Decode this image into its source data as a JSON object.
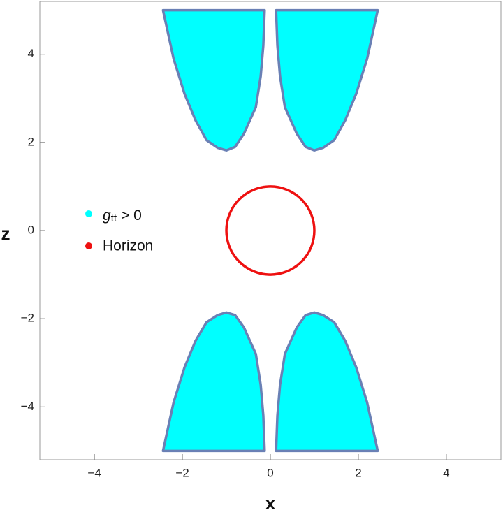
{
  "chart_data": {
    "type": "region",
    "xlabel": "x",
    "ylabel": "z",
    "xlim": [
      -5.24,
      5.24
    ],
    "ylim": [
      -5.2,
      5.2
    ],
    "xticks": [
      {
        "value": -4,
        "label": "−4"
      },
      {
        "value": -2,
        "label": "−2"
      },
      0,
      2,
      4
    ],
    "yticks": [
      {
        "value": -4,
        "label": "−4"
      },
      {
        "value": -2,
        "label": "−2"
      },
      0,
      2,
      4
    ],
    "series": [
      {
        "name": {
          "base": "g",
          "sub": "tt",
          "rest": "> 0"
        },
        "color": "#00ffff",
        "edge_color": "#6a80b5",
        "regions": [
          {
            "x": [
              0.13,
              0.16,
              0.22,
              0.33,
              0.6,
              0.8,
              1.0,
              1.2,
              1.45,
              1.7,
              1.95,
              2.2,
              2.44
            ],
            "z": [
              5,
              4.2,
              3.5,
              2.8,
              2.2,
              1.9,
              1.82,
              1.88,
              2.05,
              2.5,
              3.1,
              3.9,
              5
            ]
          },
          {
            "x": [
              -0.13,
              -0.16,
              -0.22,
              -0.33,
              -0.6,
              -0.8,
              -1.0,
              -1.2,
              -1.45,
              -1.7,
              -1.95,
              -2.2,
              -2.44
            ],
            "z": [
              5,
              4.2,
              3.5,
              2.8,
              2.2,
              1.9,
              1.82,
              1.88,
              2.05,
              2.5,
              3.1,
              3.9,
              5
            ]
          },
          {
            "x": [
              0.13,
              0.16,
              0.22,
              0.33,
              0.6,
              0.8,
              1.0,
              1.2,
              1.45,
              1.7,
              1.95,
              2.2,
              2.44
            ],
            "z": [
              -5,
              -4.2,
              -3.5,
              -2.8,
              -2.2,
              -1.92,
              -1.86,
              -1.92,
              -2.08,
              -2.5,
              -3.1,
              -3.9,
              -5
            ]
          },
          {
            "x": [
              -0.13,
              -0.16,
              -0.22,
              -0.33,
              -0.6,
              -0.8,
              -1.0,
              -1.2,
              -1.45,
              -1.7,
              -1.95,
              -2.2,
              -2.44
            ],
            "z": [
              -5,
              -4.2,
              -3.5,
              -2.8,
              -2.2,
              -1.92,
              -1.86,
              -1.92,
              -2.08,
              -2.5,
              -3.1,
              -3.9,
              -5
            ]
          }
        ]
      },
      {
        "name": "Horizon",
        "color": "#ee1111",
        "center": {
          "x": 0,
          "z": 0
        },
        "radius": 1
      }
    ]
  }
}
